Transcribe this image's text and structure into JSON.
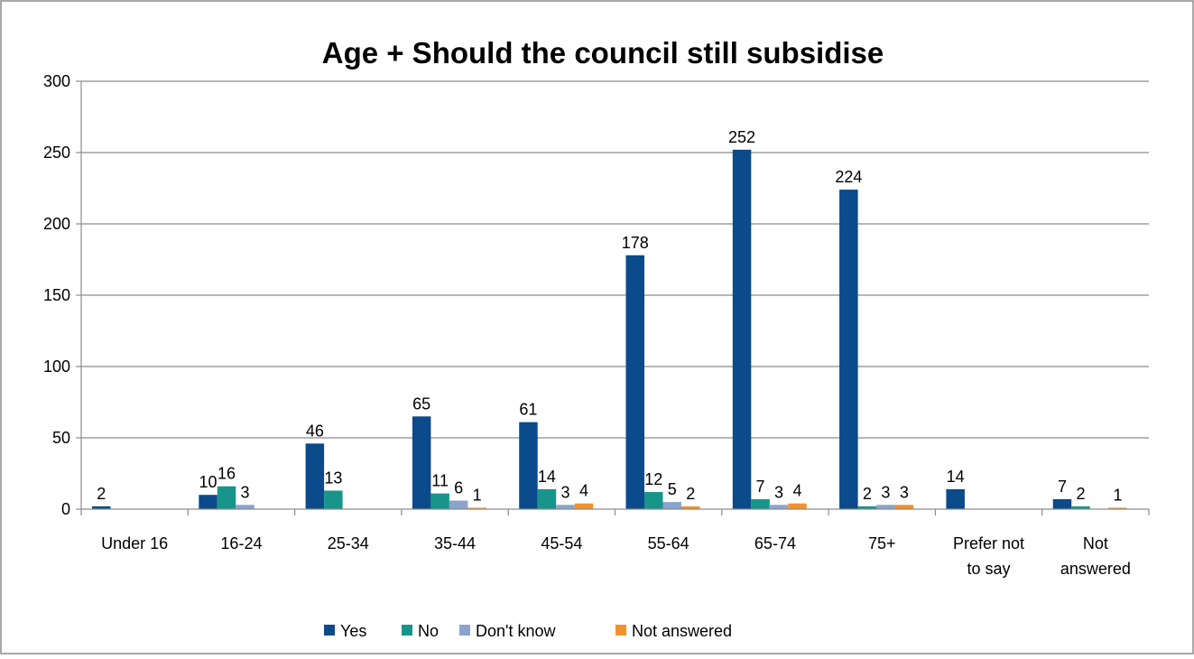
{
  "chart_data": {
    "type": "bar",
    "title": "Age + Should the council still subsidise",
    "xlabel": "",
    "ylabel": "",
    "ylim": [
      0,
      300
    ],
    "yticks": [
      0,
      50,
      100,
      150,
      200,
      250,
      300
    ],
    "grid": true,
    "legend": "bottom",
    "categories": [
      [
        "Under 16"
      ],
      [
        "16-24"
      ],
      [
        "25-34"
      ],
      [
        "35-44"
      ],
      [
        "45-54"
      ],
      [
        "55-64"
      ],
      [
        "65-74"
      ],
      [
        "75+"
      ],
      [
        "Prefer not",
        "to say"
      ],
      [
        "Not",
        "answered"
      ]
    ],
    "series": [
      {
        "name": "Yes",
        "color": "#0b4a8b",
        "values": [
          2,
          10,
          46,
          65,
          61,
          178,
          252,
          224,
          14,
          7
        ]
      },
      {
        "name": "No",
        "color": "#17958a",
        "values": [
          null,
          16,
          13,
          11,
          14,
          12,
          7,
          2,
          null,
          2
        ]
      },
      {
        "name": "Don't know",
        "color": "#8aa4cc",
        "values": [
          null,
          3,
          null,
          6,
          3,
          5,
          3,
          3,
          null,
          null
        ]
      },
      {
        "name": "Not answered",
        "color": "#f2922b",
        "values": [
          null,
          null,
          null,
          1,
          4,
          2,
          4,
          3,
          null,
          1
        ]
      }
    ]
  }
}
